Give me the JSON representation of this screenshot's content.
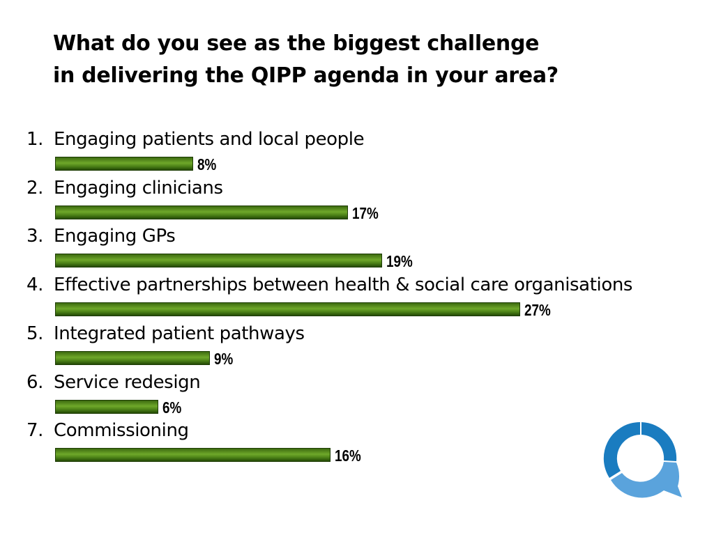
{
  "title_line1": "What do you see as the biggest challenge",
  "title_line2": "in delivering the QIPP agenda in your area?",
  "chart_data": {
    "type": "bar",
    "orientation": "horizontal",
    "categories": [
      "Engaging patients and local people",
      "Engaging clinicians",
      "Engaging GPs",
      "Effective partnerships between health & social care organisations",
      "Integrated patient pathways",
      "Service redesign",
      "Commissioning"
    ],
    "numbers": [
      "1.",
      "2.",
      "3.",
      "4.",
      "5.",
      "6.",
      "7."
    ],
    "values": [
      8,
      17,
      19,
      27,
      9,
      6,
      16
    ],
    "value_labels": [
      "8%",
      "17%",
      "19%",
      "27%",
      "9%",
      "6%",
      "16%"
    ],
    "xlim": [
      0,
      27
    ],
    "bar_color": "#4d8318",
    "grid": false,
    "legend": "none"
  },
  "logo": {
    "icon": "q-logo-icon",
    "colors": [
      "#1a7cc0",
      "#5aa3dc"
    ]
  }
}
